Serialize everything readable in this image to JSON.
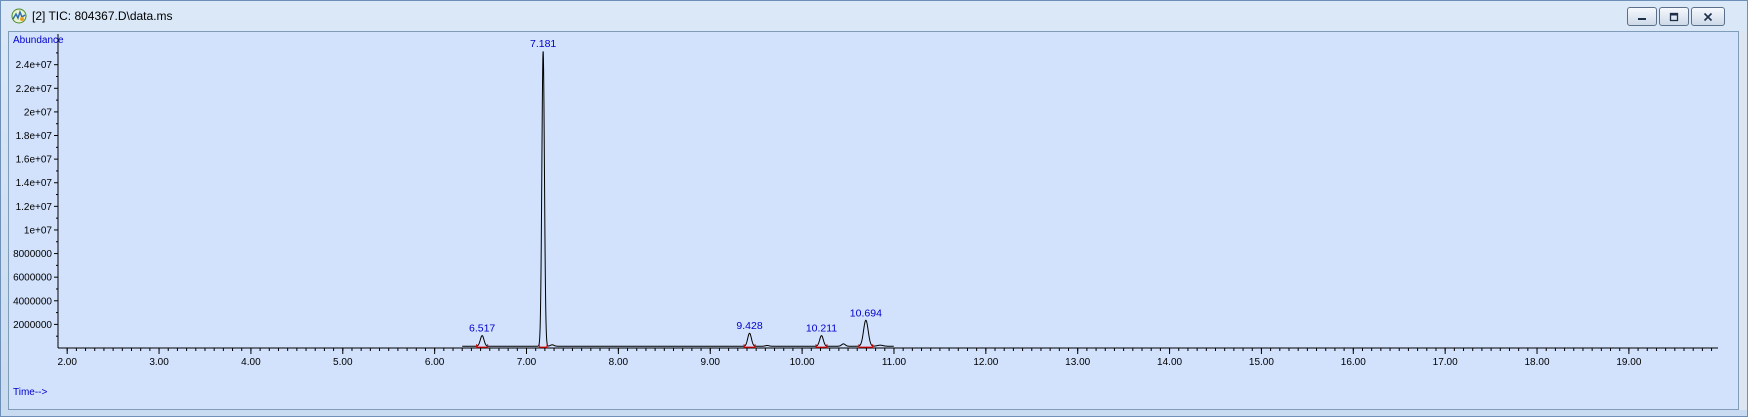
{
  "window": {
    "title": "[2] TIC: 804367.D\\data.ms"
  },
  "icons": {
    "app": "chromatogram-app-icon",
    "minimize": "minimize-icon",
    "restore": "restore-icon",
    "close": "close-icon"
  },
  "colors": {
    "plot_background": "#d2e2fc",
    "trace": "#000000",
    "labels": "#0000cc",
    "integration_marks": "#d00000"
  },
  "chart_data": {
    "type": "line",
    "title": "",
    "xlabel": "Time-->",
    "ylabel": "Abundance",
    "xlim": [
      1.9,
      19.97
    ],
    "ylim": [
      0,
      26600000
    ],
    "grid": false,
    "x_ticks": [
      2,
      3,
      4,
      5,
      6,
      7,
      8,
      9,
      10,
      11,
      12,
      13,
      14,
      15,
      16,
      17,
      18,
      19
    ],
    "x_tick_labels": [
      "2.00",
      "3.00",
      "4.00",
      "5.00",
      "6.00",
      "7.00",
      "8.00",
      "9.00",
      "10.00",
      "11.00",
      "12.00",
      "13.00",
      "14.00",
      "15.00",
      "16.00",
      "17.00",
      "18.00",
      "19.00"
    ],
    "y_ticks": [
      2000000,
      4000000,
      6000000,
      8000000,
      10000000,
      12000000,
      14000000,
      16000000,
      18000000,
      20000000,
      22000000,
      24000000
    ],
    "y_tick_labels": [
      "2000000",
      "4000000",
      "6000000",
      "8000000",
      "1e+07",
      "1.2e+07",
      "1.4e+07",
      "1.6e+07",
      "1.8e+07",
      "2e+07",
      "2.2e+07",
      "2.4e+07"
    ],
    "baseline": 150000,
    "peaks": [
      {
        "rt": 6.517,
        "label": "6.517",
        "height": 900000,
        "width": 0.02
      },
      {
        "rt": 7.181,
        "label": "7.181",
        "height": 25000000,
        "width": 0.014
      },
      {
        "rt": 9.428,
        "label": "9.428",
        "height": 1100000,
        "width": 0.02
      },
      {
        "rt": 10.211,
        "label": "10.211",
        "height": 900000,
        "width": 0.02
      },
      {
        "rt": 10.694,
        "label": "10.694",
        "height": 2200000,
        "width": 0.025
      }
    ],
    "minor_peaks": [
      {
        "rt": 7.28,
        "height": 120000,
        "width": 0.02
      },
      {
        "rt": 9.62,
        "height": 60000,
        "width": 0.02
      },
      {
        "rt": 10.45,
        "height": 200000,
        "width": 0.02
      },
      {
        "rt": 10.85,
        "height": 90000,
        "width": 0.03
      }
    ]
  }
}
